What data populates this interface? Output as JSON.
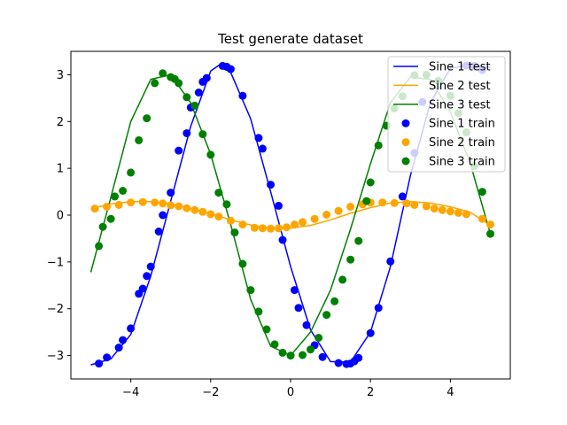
{
  "chart_data": {
    "type": "line",
    "title": "Test generate dataset",
    "xlabel": "",
    "ylabel": "",
    "xlim": [
      -5.5,
      5.5
    ],
    "ylim": [
      -3.5,
      3.5
    ],
    "xticks": [
      -4,
      -2,
      0,
      2,
      4
    ],
    "yticks": [
      -3,
      -2,
      -1,
      0,
      1,
      2,
      3
    ],
    "xtick_labels": [
      "−4",
      "−2",
      "0",
      "2",
      "4"
    ],
    "ytick_labels": [
      "−3",
      "−2",
      "−1",
      "0",
      "1",
      "2",
      "3"
    ],
    "legend_position": "top-right",
    "grid": false,
    "series": [
      {
        "name": "Sine 1 test",
        "kind": "line",
        "color": "#0000ff",
        "x": [
          -5.0,
          -4.5,
          -4.0,
          -3.5,
          -3.0,
          -2.5,
          -2.0,
          -1.8,
          -1.5,
          -1.0,
          -0.5,
          0.0,
          0.5,
          1.0,
          1.5,
          2.0,
          2.5,
          3.0,
          3.5,
          4.0,
          4.5,
          5.0
        ],
        "y": [
          -3.2,
          -3.07,
          -2.55,
          -1.3,
          0.3,
          1.9,
          3.08,
          3.2,
          3.05,
          2.06,
          0.5,
          -1.1,
          -2.45,
          -3.13,
          -3.14,
          -2.5,
          -1.1,
          0.85,
          2.4,
          3.14,
          3.2,
          3.16
        ]
      },
      {
        "name": "Sine 2 test",
        "kind": "line",
        "color": "#ffa500",
        "x": [
          -5.0,
          -4.5,
          -4.0,
          -3.5,
          -3.0,
          -2.5,
          -2.0,
          -1.5,
          -1.0,
          -0.5,
          0.0,
          0.5,
          1.0,
          1.5,
          2.0,
          2.5,
          3.0,
          3.5,
          4.0,
          4.5,
          5.0
        ],
        "y": [
          0.14,
          0.24,
          0.29,
          0.29,
          0.24,
          0.14,
          0.03,
          -0.1,
          -0.21,
          -0.28,
          -0.28,
          -0.22,
          -0.1,
          0.04,
          0.16,
          0.26,
          0.29,
          0.26,
          0.18,
          0.06,
          -0.22
        ]
      },
      {
        "name": "Sine 3 test",
        "kind": "line",
        "color": "#008000",
        "x": [
          -5.0,
          -4.5,
          -4.0,
          -3.5,
          -3.0,
          -2.5,
          -2.0,
          -1.5,
          -1.0,
          -0.5,
          0.0,
          0.5,
          1.0,
          1.5,
          2.0,
          2.5,
          3.0,
          3.5,
          4.0,
          4.5,
          5.0
        ],
        "y": [
          -1.22,
          0.38,
          2.0,
          2.9,
          3.0,
          2.4,
          1.3,
          -0.2,
          -1.8,
          -2.8,
          -3.0,
          -2.5,
          -1.6,
          -0.3,
          1.1,
          2.4,
          2.95,
          2.9,
          2.2,
          1.1,
          -0.4
        ]
      },
      {
        "name": "Sine 1 train",
        "kind": "scatter",
        "color": "#0000ff",
        "x": [
          -4.8,
          -4.6,
          -4.3,
          -4.2,
          -4.0,
          -3.8,
          -3.7,
          -3.6,
          -3.5,
          -3.3,
          -3.2,
          -3.0,
          -2.8,
          -2.6,
          -2.5,
          -2.3,
          -2.2,
          -2.1,
          -1.7,
          -1.6,
          -1.5,
          -1.2,
          -0.8,
          -0.7,
          -0.5,
          -0.3,
          -0.2,
          0.1,
          0.2,
          0.4,
          0.6,
          0.8,
          1.2,
          1.4,
          1.5,
          1.6,
          1.7,
          2.0,
          2.2,
          2.5,
          2.8,
          3.1,
          3.3,
          4.4,
          4.6,
          4.8
        ],
        "y": [
          -3.17,
          -3.04,
          -2.83,
          -2.67,
          -2.42,
          -1.68,
          -1.57,
          -1.3,
          -1.1,
          -0.35,
          0.0,
          0.48,
          1.38,
          1.75,
          2.3,
          2.62,
          2.85,
          2.93,
          3.19,
          3.17,
          3.12,
          2.55,
          1.65,
          1.42,
          0.65,
          0.2,
          -0.53,
          -1.6,
          -1.98,
          -2.35,
          -2.78,
          -3.03,
          -3.16,
          -3.18,
          -3.17,
          -3.12,
          -3.05,
          -2.52,
          -1.98,
          -0.99,
          0.4,
          1.33,
          2.42,
          3.2,
          3.19,
          3.1
        ]
      },
      {
        "name": "Sine 2 train",
        "kind": "scatter",
        "color": "#ffa500",
        "x": [
          -4.9,
          -4.6,
          -4.3,
          -4.0,
          -3.7,
          -3.4,
          -3.2,
          -3.0,
          -2.8,
          -2.6,
          -2.4,
          -2.2,
          -2.0,
          -1.8,
          -1.5,
          -1.2,
          -0.9,
          -0.7,
          -0.5,
          -0.3,
          -0.1,
          0.1,
          0.3,
          0.6,
          0.9,
          1.2,
          1.5,
          1.8,
          2.0,
          2.3,
          2.6,
          2.9,
          3.1,
          3.4,
          3.6,
          3.8,
          4.0,
          4.2,
          4.4,
          4.8,
          5.0
        ],
        "y": [
          0.14,
          0.18,
          0.22,
          0.27,
          0.28,
          0.27,
          0.25,
          0.21,
          0.19,
          0.15,
          0.11,
          0.07,
          0.02,
          -0.03,
          -0.12,
          -0.2,
          -0.27,
          -0.28,
          -0.29,
          -0.28,
          -0.26,
          -0.2,
          -0.15,
          -0.08,
          0.01,
          0.09,
          0.18,
          0.23,
          0.27,
          0.27,
          0.26,
          0.25,
          0.22,
          0.19,
          0.14,
          0.11,
          0.08,
          0.05,
          0.02,
          -0.08,
          -0.2
        ]
      },
      {
        "name": "Sine 3 train",
        "kind": "scatter",
        "color": "#008000",
        "x": [
          -4.8,
          -4.7,
          -4.5,
          -4.4,
          -4.2,
          -4.0,
          -3.8,
          -3.6,
          -3.4,
          -3.2,
          -3.0,
          -2.9,
          -2.8,
          -2.6,
          -2.4,
          -2.2,
          -2.0,
          -1.8,
          -1.6,
          -1.4,
          -1.2,
          -1.0,
          -0.8,
          -0.6,
          -0.4,
          -0.2,
          0.0,
          0.3,
          0.5,
          0.7,
          0.9,
          1.1,
          1.3,
          1.5,
          1.7,
          1.9,
          2.0,
          2.2,
          2.4,
          2.6,
          2.8,
          3.1,
          3.4,
          3.7,
          4.0,
          4.2,
          4.4,
          4.6,
          4.8,
          5.0
        ],
        "y": [
          -0.66,
          -0.25,
          -0.08,
          0.4,
          0.52,
          0.91,
          1.6,
          2.07,
          2.82,
          3.03,
          2.95,
          2.91,
          2.82,
          2.52,
          2.34,
          1.73,
          1.29,
          0.48,
          0.23,
          -0.37,
          -1.04,
          -1.6,
          -2.06,
          -2.44,
          -2.76,
          -2.94,
          -3.0,
          -2.99,
          -2.87,
          -2.62,
          -2.13,
          -1.84,
          -1.38,
          -0.95,
          -0.55,
          0.3,
          0.7,
          1.49,
          1.91,
          2.28,
          2.54,
          2.99,
          3.0,
          2.87,
          2.55,
          2.18,
          1.77,
          1.05,
          0.5,
          -0.4
        ]
      }
    ]
  }
}
